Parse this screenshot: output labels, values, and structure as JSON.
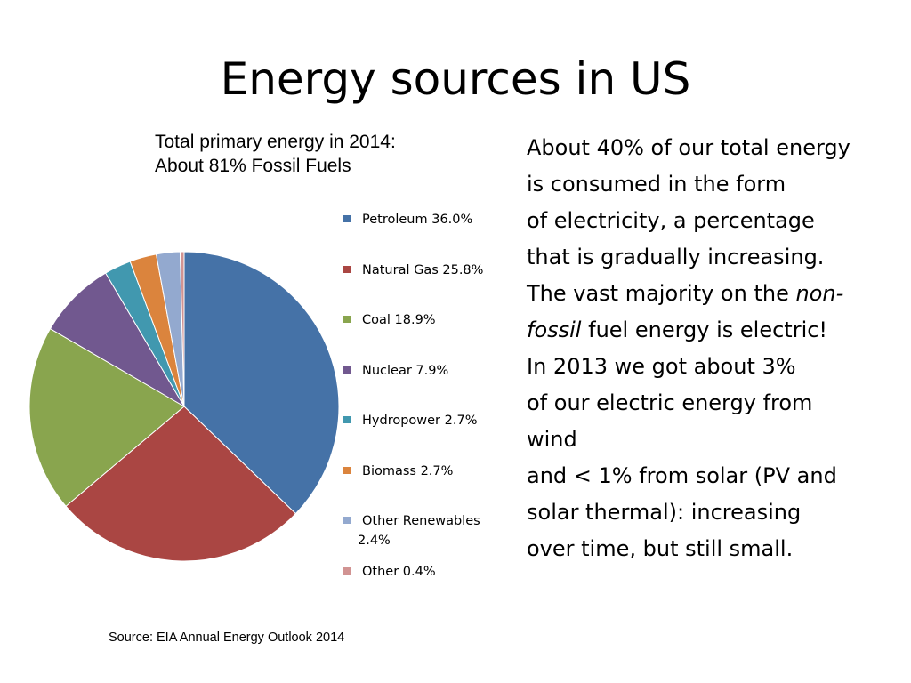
{
  "slide": {
    "title": "Energy sources in US",
    "subtitle_line1": "Total primary energy in 2014:",
    "subtitle_line2": "About 81% Fossil Fuels",
    "source": "Source: EIA Annual Energy Outlook 2014"
  },
  "body_text": {
    "line1": "About 40% of our total energy",
    "line2": "is consumed in the form",
    "line3": "of electricity, a percentage",
    "line4": "that is gradually increasing.",
    "line5_a": "The vast majority on the ",
    "line5_b": "non-",
    "line6_a": "fossil",
    "line6_b": " fuel energy is electric!",
    "line7": "In 2013 we got about 3%",
    "line8": "of our electric energy from",
    "line9": "wind",
    "line10": "and < 1% from solar (PV and",
    "line11": "solar thermal): increasing",
    "line12": "over time, but still small."
  },
  "legend": {
    "items": [
      {
        "label": "Petroleum 36.0%"
      },
      {
        "label": "Natural Gas 25.8%"
      },
      {
        "label": "Coal 18.9%"
      },
      {
        "label": "Nuclear 7.9%"
      },
      {
        "label": "Hydropower 2.7%"
      },
      {
        "label": "Biomass 2.7%"
      },
      {
        "label": "Other Renewables",
        "label_line2": "2.4%"
      },
      {
        "label": "Other 0.4%"
      }
    ]
  },
  "chart_data": {
    "type": "pie",
    "title": "Total primary energy in 2014: About 81% Fossil Fuels",
    "categories": [
      "Petroleum",
      "Natural Gas",
      "Coal",
      "Nuclear",
      "Hydropower",
      "Biomass",
      "Other Renewables",
      "Other"
    ],
    "values": [
      36.0,
      25.8,
      18.9,
      7.9,
      2.7,
      2.7,
      2.4,
      0.4
    ],
    "unit": "%",
    "colors": [
      "#4572A7",
      "#AA4643",
      "#89A54E",
      "#71588F",
      "#4198AF",
      "#DB843D",
      "#93A9CF",
      "#D19392"
    ],
    "legend_position": "right",
    "start_angle": "12 o'clock",
    "direction": "clockwise"
  }
}
